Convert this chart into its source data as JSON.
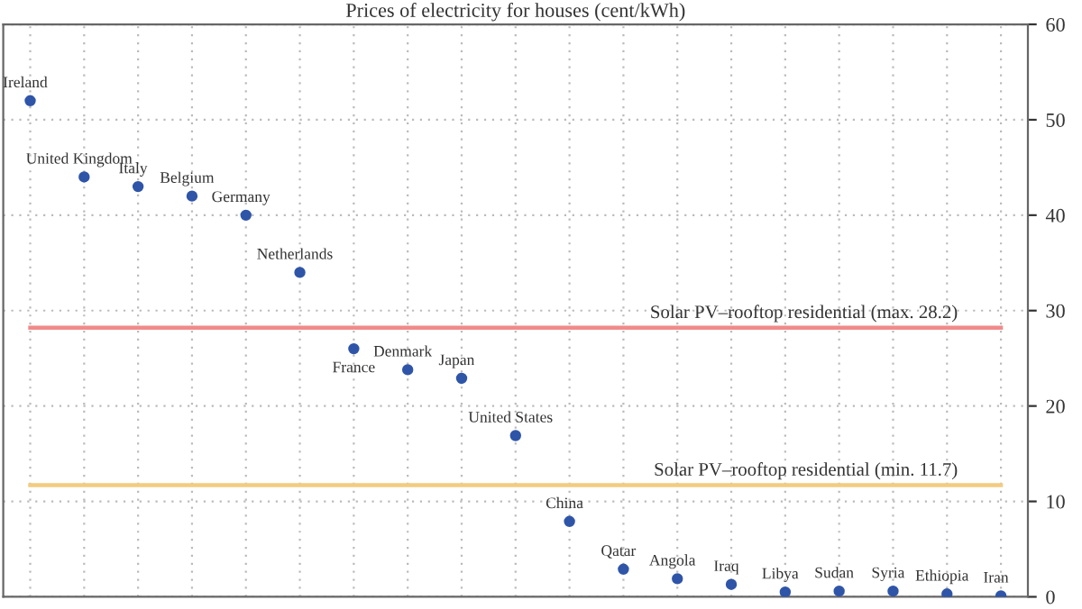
{
  "chart_data": {
    "type": "scatter",
    "title": "Prices of electricity for houses (cent/kWh)",
    "categories": [
      "Ireland",
      "United Kingdom",
      "Italy",
      "Belgium",
      "Germany",
      "Netherlands",
      "France",
      "Denmark",
      "Japan",
      "United States",
      "China",
      "Qatar",
      "Angola",
      "Iraq",
      "Libya",
      "Sudan",
      "Syria",
      "Ethiopia",
      "Iran"
    ],
    "series": [
      {
        "color": "#2f55a8",
        "values": [
          52,
          44,
          43,
          42,
          40,
          34,
          26,
          23.8,
          22.9,
          16.9,
          7.9,
          2.9,
          1.9,
          1.3,
          0.5,
          0.6,
          0.6,
          0.3,
          0.1
        ]
      }
    ],
    "ylim": [
      0,
      60
    ],
    "yticks": [
      0,
      10,
      20,
      30,
      40,
      50,
      60
    ],
    "ref_lines": [
      {
        "axis": "y",
        "value": 28.2,
        "label": "Solar PV–rooftop residential (max. 28.2)",
        "color": "#f08a8a"
      },
      {
        "axis": "y",
        "value": 11.7,
        "label": "Solar PV–rooftop residential (min. 11.7)",
        "color": "#f2cc80"
      }
    ],
    "grid": true,
    "marker": "circle",
    "tick_labels": "y",
    "legend": false
  }
}
